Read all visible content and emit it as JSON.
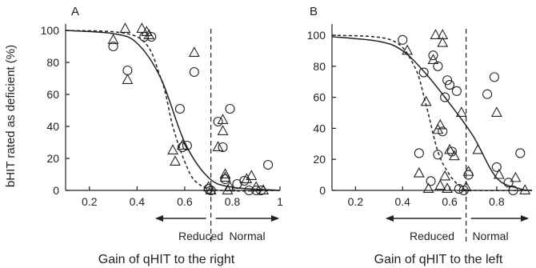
{
  "ylabel": "bHIT rated as deficient (%)",
  "panels": [
    {
      "letter": "A",
      "xlabel": "Gain of qHIT to the right",
      "reduced_label": "Reduced",
      "normal_label": "Normal",
      "xticks": [
        "0.2",
        "0.4",
        "0.6",
        "0.8",
        "1"
      ],
      "yticks": [
        "0",
        "20",
        "40",
        "60",
        "80",
        "100"
      ]
    },
    {
      "letter": "B",
      "xlabel": "Gain of qHIT to the left",
      "reduced_label": "Reduced",
      "normal_label": "Normal",
      "xticks": [
        "0.2",
        "0.4",
        "0.6",
        "0.8"
      ],
      "yticks": [
        "0",
        "20",
        "40",
        "60",
        "80",
        "100"
      ]
    }
  ],
  "chart_data": [
    {
      "type": "scatter",
      "title": "A",
      "xlabel": "Gain of qHIT to the right",
      "ylabel": "bHIT rated as deficient (%)",
      "xlim": [
        0.1,
        1.0
      ],
      "ylim": [
        0,
        100
      ],
      "cutoff_x": 0.71,
      "series": [
        {
          "marker": "circle",
          "points": [
            [
              0.3,
              90
            ],
            [
              0.36,
              75
            ],
            [
              0.43,
              96
            ],
            [
              0.46,
              96
            ],
            [
              0.58,
              51
            ],
            [
              0.59,
              27
            ],
            [
              0.61,
              28
            ],
            [
              0.64,
              74
            ],
            [
              0.7,
              1
            ],
            [
              0.71,
              0
            ],
            [
              0.74,
              43
            ],
            [
              0.76,
              27
            ],
            [
              0.77,
              7
            ],
            [
              0.79,
              51
            ],
            [
              0.82,
              4
            ],
            [
              0.85,
              6
            ],
            [
              0.87,
              0
            ],
            [
              0.9,
              0
            ],
            [
              0.92,
              0
            ],
            [
              0.95,
              16
            ]
          ]
        },
        {
          "marker": "triangle",
          "points": [
            [
              0.3,
              94
            ],
            [
              0.35,
              101
            ],
            [
              0.36,
              69
            ],
            [
              0.42,
              101
            ],
            [
              0.44,
              99
            ],
            [
              0.45,
              97
            ],
            [
              0.55,
              25
            ],
            [
              0.56,
              18
            ],
            [
              0.59,
              28
            ],
            [
              0.64,
              86
            ],
            [
              0.7,
              2
            ],
            [
              0.71,
              0
            ],
            [
              0.74,
              27
            ],
            [
              0.76,
              44
            ],
            [
              0.76,
              37
            ],
            [
              0.77,
              10
            ],
            [
              0.77,
              8
            ],
            [
              0.78,
              0
            ],
            [
              0.79,
              2
            ],
            [
              0.86,
              7
            ],
            [
              0.88,
              9
            ],
            [
              0.9,
              2
            ],
            [
              0.93,
              0
            ]
          ]
        }
      ],
      "curves": [
        {
          "style": "solid",
          "points": [
            [
              0.1,
              100
            ],
            [
              0.3,
              98
            ],
            [
              0.4,
              92
            ],
            [
              0.5,
              70
            ],
            [
              0.6,
              30
            ],
            [
              0.7,
              8
            ],
            [
              0.8,
              2
            ],
            [
              1.0,
              0
            ]
          ]
        },
        {
          "style": "dashed",
          "points": [
            [
              0.1,
              100
            ],
            [
              0.4,
              96
            ],
            [
              0.5,
              70
            ],
            [
              0.55,
              40
            ],
            [
              0.6,
              18
            ],
            [
              0.65,
              5
            ],
            [
              0.75,
              0
            ],
            [
              1.0,
              0
            ]
          ]
        }
      ]
    },
    {
      "type": "scatter",
      "title": "B",
      "xlabel": "Gain of qHIT to the left",
      "ylabel": "bHIT rated as deficient (%)",
      "xlim": [
        0.1,
        0.95
      ],
      "ylim": [
        0,
        100
      ],
      "cutoff_x": 0.67,
      "series": [
        {
          "marker": "circle",
          "points": [
            [
              0.4,
              97
            ],
            [
              0.47,
              24
            ],
            [
              0.49,
              76
            ],
            [
              0.52,
              6
            ],
            [
              0.53,
              87
            ],
            [
              0.55,
              23
            ],
            [
              0.55,
              80
            ],
            [
              0.57,
              38
            ],
            [
              0.58,
              60
            ],
            [
              0.59,
              71
            ],
            [
              0.6,
              68
            ],
            [
              0.61,
              25
            ],
            [
              0.63,
              64
            ],
            [
              0.64,
              1
            ],
            [
              0.66,
              0
            ],
            [
              0.68,
              10
            ],
            [
              0.76,
              62
            ],
            [
              0.79,
              73
            ],
            [
              0.8,
              15
            ],
            [
              0.85,
              5
            ],
            [
              0.87,
              0
            ],
            [
              0.9,
              24
            ]
          ]
        },
        {
          "marker": "triangle",
          "points": [
            [
              0.42,
              90
            ],
            [
              0.47,
              11
            ],
            [
              0.5,
              57
            ],
            [
              0.51,
              1
            ],
            [
              0.53,
              84
            ],
            [
              0.54,
              100
            ],
            [
              0.55,
              39
            ],
            [
              0.56,
              42
            ],
            [
              0.56,
              3
            ],
            [
              0.57,
              100
            ],
            [
              0.57,
              95
            ],
            [
              0.58,
              9
            ],
            [
              0.59,
              1
            ],
            [
              0.6,
              26
            ],
            [
              0.62,
              22
            ],
            [
              0.65,
              50
            ],
            [
              0.67,
              2
            ],
            [
              0.68,
              12
            ],
            [
              0.72,
              26
            ],
            [
              0.8,
              50
            ],
            [
              0.81,
              10
            ],
            [
              0.88,
              8
            ],
            [
              0.92,
              0
            ]
          ]
        }
      ],
      "curves": [
        {
          "style": "solid",
          "points": [
            [
              0.1,
              99
            ],
            [
              0.3,
              96
            ],
            [
              0.4,
              90
            ],
            [
              0.5,
              75
            ],
            [
              0.6,
              56
            ],
            [
              0.7,
              35
            ],
            [
              0.8,
              8
            ],
            [
              0.9,
              1
            ],
            [
              0.95,
              0
            ]
          ]
        },
        {
          "style": "dashed",
          "points": [
            [
              0.1,
              100
            ],
            [
              0.35,
              97
            ],
            [
              0.45,
              80
            ],
            [
              0.5,
              55
            ],
            [
              0.55,
              25
            ],
            [
              0.6,
              10
            ],
            [
              0.65,
              2
            ],
            [
              0.7,
              0
            ],
            [
              0.95,
              0
            ]
          ]
        }
      ]
    }
  ]
}
